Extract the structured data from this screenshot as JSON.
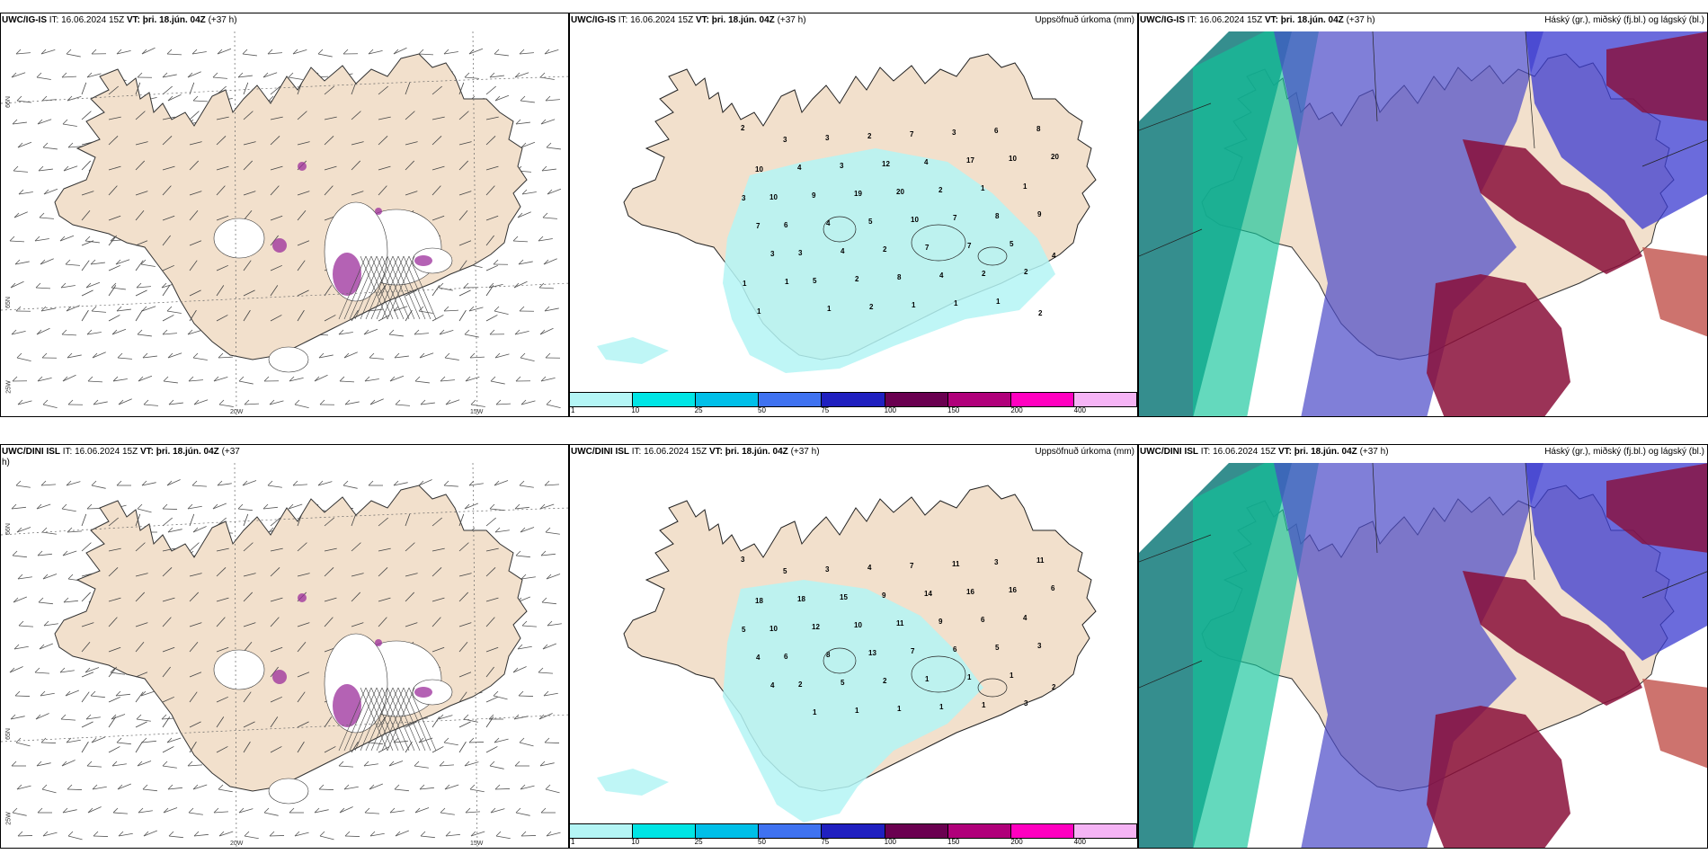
{
  "panels": {
    "a": {
      "model": "UWC/IG-IS",
      "it_label": "IT:",
      "it": "16.06.2024 15Z",
      "vt_label": "VT:",
      "vt": "þri. 18.jún. 04Z",
      "lead": "(+37 h)"
    },
    "b": {
      "model": "UWC/IG-IS",
      "it_label": "IT:",
      "it": "16.06.2024 15Z",
      "vt_label": "VT:",
      "vt": "þri. 18.jún. 04Z",
      "lead": "(+37 h)",
      "right": "Uppsöfnuð úrkoma (mm)"
    },
    "c": {
      "model": "UWC/IG-IS",
      "it_label": "IT:",
      "it": "16.06.2024 15Z",
      "vt_label": "VT:",
      "vt": "þri. 18.jún. 04Z",
      "lead": "(+37 h)",
      "right": "Háský (gr.), miðský (fj.bl.) og lágský (bl.)"
    },
    "d": {
      "model": "UWC/DINI ISL",
      "it_label": "IT:",
      "it": "16.06.2024 15Z",
      "vt_label": "VT:",
      "vt": "þri. 18.jún. 04Z",
      "lead": "(+37",
      "lead2": "h)"
    },
    "e": {
      "model": "UWC/DINI ISL",
      "it_label": "IT:",
      "it": "16.06.2024 15Z",
      "vt_label": "VT:",
      "vt": "þri. 18.jún. 04Z",
      "lead": "(+37 h)",
      "right": "Uppsöfnuð úrkoma (mm)"
    },
    "f": {
      "model": "UWC/DINI ISL",
      "it_label": "IT:",
      "it": "16.06.2024 15Z",
      "vt_label": "VT:",
      "vt": "þri. 18.jún. 04Z",
      "lead": "(+37 h)",
      "right": "Háský (gr.), miðský (fj.bl.) og lágský (bl.)"
    }
  },
  "grid_labels": {
    "n66": "66N",
    "n65": "65N",
    "w25": "25W",
    "w20": "20W",
    "w15": "15W"
  },
  "legend": {
    "labels": [
      "1",
      "10",
      "25",
      "50",
      "75",
      "100",
      "150",
      "200",
      "400"
    ],
    "colors": [
      "#b4f5f5",
      "#00e5e5",
      "#00bfe8",
      "#3f72f0",
      "#2020c0",
      "#6a0050",
      "#b0007a",
      "#ff00c0",
      "#f5b4f5"
    ]
  },
  "precip_top": [
    "2",
    "3",
    "3",
    "2",
    "7",
    "3",
    "6",
    "8",
    "10",
    "4",
    "3",
    "12",
    "4",
    "17",
    "10",
    "20",
    "10",
    "9",
    "19",
    "20",
    "2",
    "1",
    "1",
    "3",
    "6",
    "4",
    "5",
    "10",
    "7",
    "8",
    "9",
    "7",
    "3",
    "4",
    "2",
    "7",
    "7",
    "5",
    "4",
    "3",
    "5",
    "2",
    "8",
    "4",
    "2",
    "2",
    "1",
    "1",
    "1",
    "2",
    "1",
    "1",
    "1",
    "2",
    "1"
  ],
  "precip_bottom": [
    "3",
    "5",
    "3",
    "4",
    "7",
    "11",
    "3",
    "11",
    "18",
    "18",
    "15",
    "9",
    "14",
    "16",
    "16",
    "6",
    "10",
    "12",
    "10",
    "11",
    "9",
    "6",
    "4",
    "5",
    "6",
    "8",
    "13",
    "7",
    "6",
    "5",
    "3",
    "4",
    "2",
    "5",
    "2",
    "1",
    "1",
    "1",
    "2",
    "4",
    "1",
    "1",
    "1",
    "1",
    "1",
    "3"
  ],
  "colors": {
    "land": "#f2e0cc",
    "precip_light": "#b4f5f5",
    "purple": "#9b2e9b",
    "cloud_high": "#cfd8d8"
  }
}
